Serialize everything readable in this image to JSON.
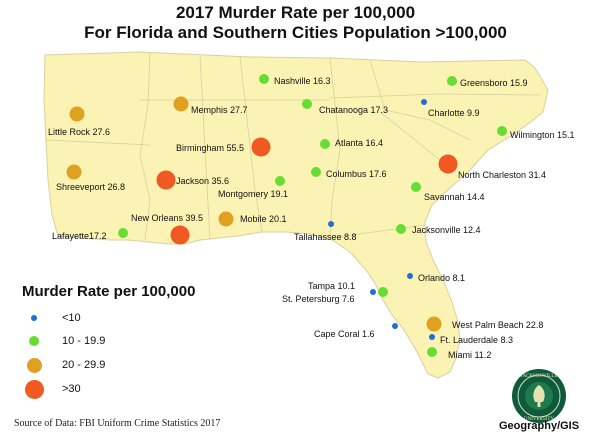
{
  "title": {
    "line1": "2017 Murder Rate per 100,000",
    "line2": "For Florida and Southern Cities Population >100,000"
  },
  "colors": {
    "land": "#fbf3b3",
    "border": "#d8d0a0",
    "low": "#1f6fd6",
    "mid": "#66dd33",
    "high": "#e0a020",
    "very_high": "#f05a22"
  },
  "legend": {
    "title": "Murder Rate per 100,000",
    "items": [
      {
        "label": "<10",
        "class": "low"
      },
      {
        "label": "10 - 19.9",
        "class": "mid"
      },
      {
        "label": "20 - 29.9",
        "class": "high"
      },
      {
        "label": ">30",
        "class": "very_high"
      }
    ]
  },
  "cities": [
    {
      "label": "Nashville 16.3",
      "class": "mid"
    },
    {
      "label": "Greensboro 15.9",
      "class": "mid"
    },
    {
      "label": "Memphis 27.7",
      "class": "high"
    },
    {
      "label": "Chatanooga 17.3",
      "class": "mid"
    },
    {
      "label": "Charlotte 9.9",
      "class": "low"
    },
    {
      "label": "Little Rock 27.6",
      "class": "high"
    },
    {
      "label": "Wilmington 15.1",
      "class": "mid"
    },
    {
      "label": "Atlanta 16.4",
      "class": "mid"
    },
    {
      "label": "Birmingham 55.5",
      "class": "very_high"
    },
    {
      "label": "Columbus 17.6",
      "class": "mid"
    },
    {
      "label": "North Charleston 31.4",
      "class": "very_high"
    },
    {
      "label": "Jackson 35.6",
      "class": "very_high"
    },
    {
      "label": "Shreeveport 26.8",
      "class": "high"
    },
    {
      "label": "Montgomery 19.1",
      "class": "mid"
    },
    {
      "label": "Savannah 14.4",
      "class": "mid"
    },
    {
      "label": "New Orleans 39.5",
      "class": "very_high"
    },
    {
      "label": "Mobile 20.1",
      "class": "high"
    },
    {
      "label": "Tallahassee 8.8",
      "class": "low"
    },
    {
      "label": "Jacksonville 12.4",
      "class": "mid"
    },
    {
      "label": "Lafayette17.2",
      "class": "mid"
    },
    {
      "label": "Orlando 8.1",
      "class": "low"
    },
    {
      "label": "Tampa 10.1",
      "class": "mid"
    },
    {
      "label": "St. Petersburg 7.6",
      "class": "low"
    },
    {
      "label": "West Palm Beach 22.8",
      "class": "high"
    },
    {
      "label": "Cape Coral 1.6",
      "class": "low"
    },
    {
      "label": "Ft. Lauderdale 8.3",
      "class": "low"
    },
    {
      "label": "Miami 11.2",
      "class": "mid"
    }
  ],
  "source": "Source of Data: FBI Uniform Crime Statistics 2017",
  "department": "Geography/GIS",
  "seal": {
    "top": "JACKSONVILLE",
    "bottom": "UNIVERSITY"
  }
}
